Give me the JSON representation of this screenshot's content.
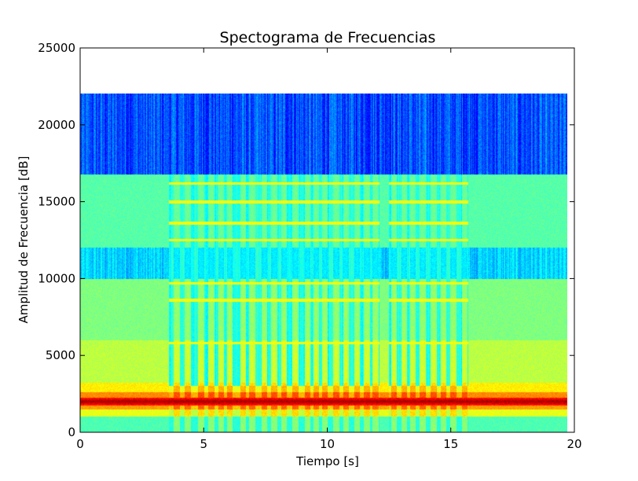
{
  "chart_data": {
    "type": "heatmap",
    "title": "Spectograma de Frecuencias",
    "xlabel": "Tiempo [s]",
    "ylabel": "Amplitud de Frecuencia [dB]",
    "xlim": [
      0,
      20
    ],
    "ylim": [
      0,
      25000
    ],
    "xticks": [
      0,
      5,
      10,
      15,
      20
    ],
    "yticks": [
      0,
      5000,
      10000,
      15000,
      20000,
      25000
    ],
    "xtick_labels": [
      "0",
      "5",
      "10",
      "15",
      "20"
    ],
    "ytick_labels": [
      "0",
      "5000",
      "10000",
      "15000",
      "20000",
      "25000"
    ],
    "grid": false,
    "colormap": "jet",
    "data_extent": {
      "time": [
        0,
        19.7
      ],
      "frequency": [
        0,
        22050
      ]
    },
    "bands": [
      {
        "f_range": [
          0,
          1000
        ],
        "level": 0.45
      },
      {
        "f_range": [
          1000,
          1500
        ],
        "level": 0.6
      },
      {
        "f_range": [
          1500,
          1800
        ],
        "level": 0.72
      },
      {
        "f_range": [
          1800,
          2200
        ],
        "level": 0.92
      },
      {
        "f_range": [
          2200,
          2600
        ],
        "level": 0.74
      },
      {
        "f_range": [
          2600,
          3200
        ],
        "level": 0.64
      },
      {
        "f_range": [
          3200,
          6000
        ],
        "level": 0.56
      },
      {
        "f_range": [
          6000,
          10000
        ],
        "level": 0.5
      },
      {
        "f_range": [
          10000,
          12000
        ],
        "level": 0.34
      },
      {
        "f_range": [
          12000,
          16800
        ],
        "level": 0.46
      },
      {
        "f_range": [
          16800,
          22050
        ],
        "level": 0.22
      }
    ],
    "quiet_segments": [
      {
        "t_range": [
          3.6,
          12.1
        ],
        "level": 0.4
      },
      {
        "t_range": [
          12.5,
          15.7
        ],
        "level": 0.4
      }
    ],
    "pulse_times": [
      3.9,
      4.35,
      4.9,
      5.3,
      5.7,
      6.05,
      6.6,
      6.95,
      7.45,
      7.85,
      8.25,
      8.7,
      9.2,
      9.55,
      9.9,
      10.35,
      10.75,
      11.2,
      11.6,
      11.95,
      12.7,
      13.1,
      13.45,
      13.85,
      14.3,
      14.7,
      15.1,
      15.55
    ],
    "tone_lines": [
      {
        "f": 5800,
        "t_range": [
          3.6,
          15.7
        ]
      },
      {
        "f": 8600,
        "t_range": [
          3.6,
          15.7
        ]
      },
      {
        "f": 9700,
        "t_range": [
          3.6,
          15.7
        ]
      },
      {
        "f": 12500,
        "t_range": [
          3.6,
          15.7
        ]
      },
      {
        "f": 13600,
        "t_range": [
          3.6,
          15.7
        ]
      },
      {
        "f": 15000,
        "t_range": [
          3.6,
          15.7
        ]
      },
      {
        "f": 16200,
        "t_range": [
          3.6,
          15.7
        ]
      }
    ],
    "peak_band": {
      "f": 2000,
      "level": 0.97
    }
  }
}
